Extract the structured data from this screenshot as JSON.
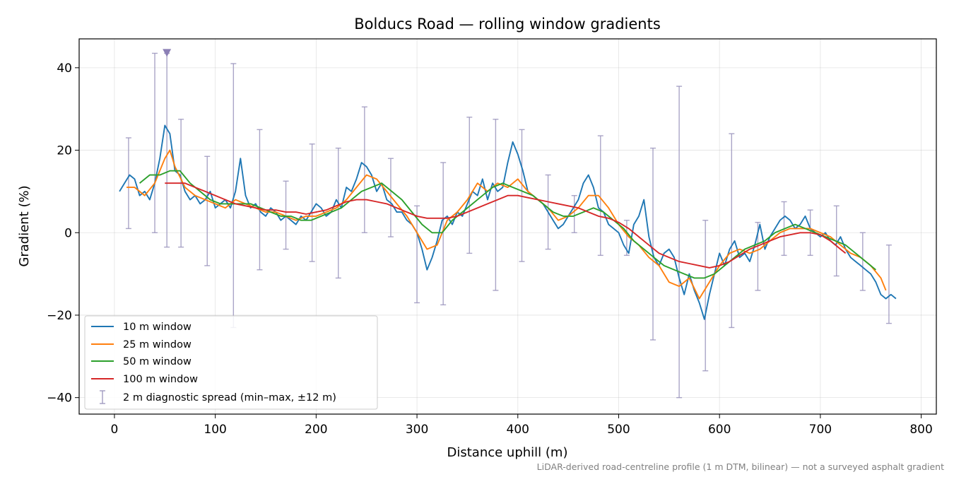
{
  "chart_data": {
    "type": "line",
    "title": "Bolducs Road — rolling window gradients",
    "xlabel": "Distance uphill (m)",
    "ylabel": "Gradient (%)",
    "xlim": [
      -35,
      815
    ],
    "ylim": [
      -44,
      47
    ],
    "xticks": [
      0,
      100,
      200,
      300,
      400,
      500,
      600,
      700,
      800
    ],
    "yticks": [
      -40,
      -20,
      0,
      20,
      40
    ],
    "ytick_labels": [
      "−40",
      "−20",
      "0",
      "20",
      "40"
    ],
    "grid": true,
    "legend_position": "lower-left",
    "footnote": "LiDAR-derived road-centreline profile (1 m DTM, bilinear) — not a surveyed asphalt gradient",
    "series": [
      {
        "name": "10 m window",
        "color": "#1f77b4",
        "x": [
          5,
          10,
          15,
          20,
          25,
          30,
          35,
          40,
          45,
          50,
          55,
          60,
          65,
          70,
          75,
          80,
          85,
          90,
          95,
          100,
          105,
          110,
          115,
          120,
          125,
          130,
          135,
          140,
          145,
          150,
          155,
          160,
          165,
          170,
          175,
          180,
          185,
          190,
          195,
          200,
          205,
          210,
          215,
          220,
          225,
          230,
          235,
          240,
          245,
          250,
          255,
          260,
          265,
          270,
          275,
          280,
          285,
          290,
          295,
          300,
          305,
          310,
          315,
          320,
          325,
          330,
          335,
          340,
          345,
          350,
          355,
          360,
          365,
          370,
          375,
          380,
          385,
          390,
          395,
          400,
          405,
          410,
          415,
          420,
          425,
          430,
          435,
          440,
          445,
          450,
          455,
          460,
          465,
          470,
          475,
          480,
          485,
          490,
          495,
          500,
          505,
          510,
          515,
          520,
          525,
          530,
          535,
          540,
          545,
          550,
          555,
          560,
          565,
          570,
          575,
          580,
          585,
          590,
          595,
          600,
          605,
          610,
          615,
          620,
          625,
          630,
          635,
          640,
          645,
          650,
          655,
          660,
          665,
          670,
          675,
          680,
          685,
          690,
          695,
          700,
          705,
          710,
          715,
          720,
          725,
          730,
          735,
          740,
          745,
          750,
          755,
          760,
          765,
          770,
          775
        ],
        "y": [
          10,
          12,
          14,
          13,
          9,
          10,
          8,
          12,
          18,
          26,
          24,
          15,
          14,
          10,
          8,
          9,
          7,
          8,
          10,
          6,
          7,
          8,
          6,
          10,
          18,
          9,
          6,
          7,
          5,
          4,
          6,
          5,
          3,
          4,
          3,
          2,
          4,
          3,
          5,
          7,
          6,
          4,
          5,
          8,
          6,
          11,
          10,
          13,
          17,
          16,
          14,
          10,
          12,
          8,
          7,
          5,
          5,
          3,
          2,
          0,
          -4,
          -9,
          -6,
          -2,
          3,
          4,
          2,
          5,
          4,
          7,
          10,
          9,
          13,
          8,
          12,
          10,
          11,
          17,
          22,
          19,
          15,
          10,
          9,
          8,
          7,
          5,
          3,
          1,
          2,
          4,
          6,
          8,
          12,
          14,
          11,
          6,
          5,
          2,
          1,
          0,
          -3,
          -5,
          2,
          4,
          8,
          -1,
          -6,
          -8,
          -5,
          -4,
          -6,
          -11,
          -15,
          -10,
          -14,
          -17,
          -21,
          -15,
          -10,
          -5,
          -8,
          -4,
          -2,
          -6,
          -5,
          -7,
          -3,
          2,
          -4,
          -1,
          1,
          3,
          4,
          3,
          1,
          2,
          4,
          1,
          0,
          -1,
          0,
          -2,
          -3,
          -1,
          -4,
          -6,
          -7,
          -8,
          -9,
          -10,
          -12,
          -15,
          -16,
          -15,
          -16
        ]
      },
      {
        "name": "25 m window",
        "color": "#ff7f0e",
        "x": [
          12,
          20,
          30,
          40,
          50,
          55,
          60,
          70,
          80,
          90,
          100,
          110,
          120,
          130,
          140,
          150,
          160,
          170,
          180,
          190,
          200,
          210,
          220,
          230,
          240,
          250,
          260,
          270,
          280,
          290,
          300,
          310,
          320,
          330,
          340,
          350,
          360,
          370,
          380,
          390,
          400,
          410,
          420,
          430,
          440,
          450,
          460,
          470,
          480,
          490,
          500,
          510,
          520,
          530,
          540,
          550,
          560,
          570,
          580,
          590,
          600,
          610,
          620,
          630,
          640,
          650,
          660,
          670,
          680,
          690,
          700,
          710,
          720,
          730,
          740,
          750,
          760,
          765
        ],
        "y": [
          11,
          11,
          9,
          12,
          18,
          20,
          16,
          11,
          9,
          8,
          7,
          6,
          8,
          7,
          6,
          5,
          5,
          4,
          3,
          4,
          4,
          5,
          6,
          8,
          11,
          14,
          13,
          10,
          7,
          4,
          0,
          -4,
          -3,
          3,
          5,
          8,
          12,
          10,
          12,
          11,
          13,
          10,
          8,
          6,
          3,
          4,
          6,
          9,
          9,
          6,
          2,
          -1,
          -3,
          -6,
          -8,
          -12,
          -13,
          -11,
          -16,
          -12,
          -8,
          -5,
          -4,
          -5,
          -4,
          -2,
          0,
          1,
          1,
          1,
          0,
          -1,
          -3,
          -5,
          -6,
          -8,
          -11,
          -14
        ]
      },
      {
        "name": "50 m window",
        "color": "#2ca02c",
        "x": [
          25,
          35,
          45,
          55,
          65,
          75,
          85,
          95,
          105,
          115,
          125,
          135,
          145,
          155,
          165,
          175,
          185,
          195,
          205,
          215,
          225,
          235,
          245,
          255,
          265,
          275,
          285,
          295,
          305,
          315,
          325,
          335,
          345,
          355,
          365,
          375,
          385,
          395,
          405,
          415,
          425,
          435,
          445,
          455,
          465,
          475,
          485,
          495,
          505,
          515,
          525,
          535,
          545,
          555,
          565,
          575,
          585,
          595,
          605,
          615,
          625,
          635,
          645,
          655,
          665,
          675,
          685,
          695,
          705,
          715,
          725,
          735,
          745,
          755
        ],
        "y": [
          12,
          14,
          14,
          15,
          15,
          12,
          10,
          8,
          7,
          7,
          7,
          7,
          6,
          5,
          4,
          4,
          3,
          3,
          4,
          5,
          6,
          8,
          10,
          11,
          12,
          10,
          8,
          5,
          2,
          0,
          0,
          3,
          5,
          7,
          9,
          11,
          12,
          11,
          10,
          9,
          7,
          5,
          4,
          4,
          5,
          6,
          5,
          3,
          1,
          -2,
          -4,
          -6,
          -8,
          -9,
          -10,
          -11,
          -11,
          -10,
          -8,
          -6,
          -4,
          -3,
          -2,
          0,
          1,
          2,
          1,
          0,
          -1,
          -2,
          -3,
          -5,
          -7,
          -9
        ]
      },
      {
        "name": "100 m window",
        "color": "#d62728",
        "x": [
          50,
          60,
          70,
          80,
          90,
          100,
          110,
          120,
          130,
          140,
          150,
          160,
          170,
          180,
          190,
          200,
          210,
          220,
          230,
          240,
          250,
          260,
          270,
          280,
          290,
          300,
          310,
          320,
          330,
          340,
          350,
          360,
          370,
          380,
          390,
          400,
          410,
          420,
          430,
          440,
          450,
          460,
          470,
          480,
          490,
          500,
          510,
          520,
          530,
          540,
          550,
          560,
          570,
          580,
          590,
          600,
          610,
          620,
          630,
          640,
          650,
          660,
          670,
          680,
          690,
          700,
          710,
          720,
          725
        ],
        "y": [
          12,
          12,
          12,
          11,
          10,
          9,
          8,
          7,
          6.5,
          6,
          5.5,
          5.5,
          5,
          5,
          4.5,
          5,
          5.5,
          6.5,
          7.5,
          8,
          8,
          7.5,
          7,
          6,
          5,
          4,
          3.5,
          3.5,
          3.5,
          4,
          5,
          6,
          7,
          8,
          9,
          9,
          8.5,
          8,
          7.5,
          7,
          6.5,
          6,
          5,
          4,
          3.5,
          2.5,
          1,
          -1,
          -3,
          -5,
          -6,
          -7,
          -7.5,
          -8,
          -8.5,
          -8,
          -7,
          -5.5,
          -4,
          -3,
          -2,
          -1,
          -0.5,
          0,
          0,
          -0.5,
          -2,
          -4,
          -5
        ]
      }
    ],
    "diagnostic_spread": {
      "name": "2 m diagnostic spread (min–max, ±12 m)",
      "color": "#9b95bd",
      "x": [
        14,
        40,
        52,
        66,
        92,
        118,
        144,
        170,
        196,
        222,
        248,
        274,
        300,
        326,
        352,
        378,
        404,
        430,
        456,
        482,
        508,
        534,
        560,
        586,
        612,
        638,
        664,
        690,
        716,
        742,
        768
      ],
      "min": [
        1,
        0,
        -3.5,
        -3.5,
        -8,
        -23,
        -9,
        -4,
        -7,
        -11,
        0,
        -1,
        -17,
        -17.5,
        -5,
        -14,
        -7,
        -4,
        0,
        -5.5,
        -5.5,
        -26,
        -40,
        -33.5,
        -23,
        -14,
        -5.5,
        -5.5,
        -10.5,
        -14,
        -22
      ],
      "max": [
        23,
        43.5,
        43.5,
        27.5,
        18.5,
        41,
        25,
        12.5,
        21.5,
        20.5,
        30.5,
        18,
        6.5,
        17,
        28,
        27.5,
        25,
        14,
        9,
        23.5,
        3,
        20.5,
        35.5,
        3,
        24,
        2.5,
        7.5,
        5.5,
        6.5,
        0,
        -3
      ]
    },
    "marker": {
      "x": 52,
      "y": 43.5,
      "shape": "triangle-down",
      "color": "#8b7fb5"
    }
  }
}
